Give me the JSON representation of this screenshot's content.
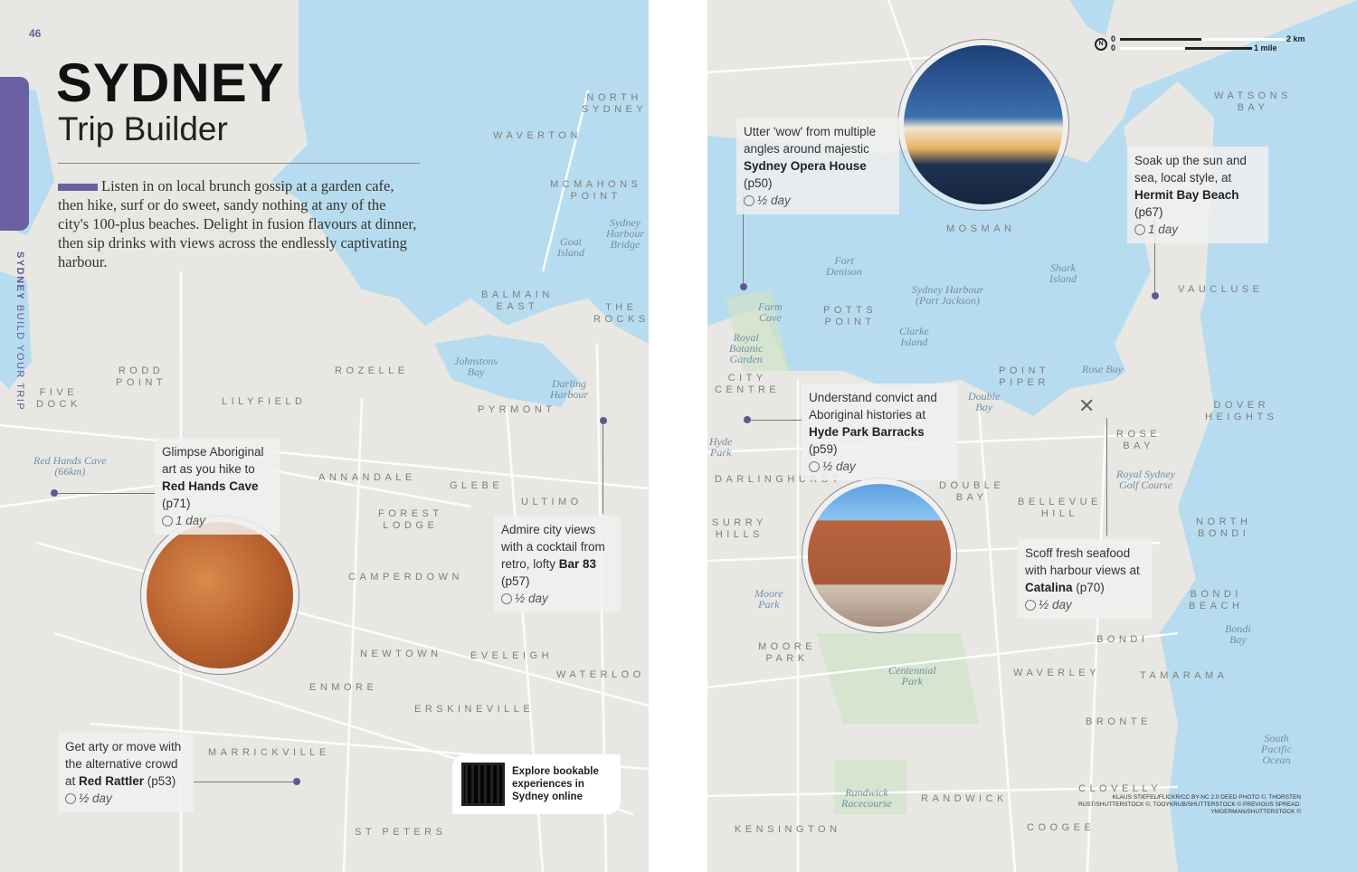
{
  "left_page": {
    "page_number": "46",
    "title": "SYDNEY",
    "subtitle": "Trip Builder",
    "intro": "Listen in on local brunch gossip at a garden cafe, then hike, surf or do sweet, sandy nothing at any of the city's 100-plus beaches. Delight in fusion flavours at dinner, then sip drinks with views across the endlessly captivating harbour.",
    "side_tab": {
      "bold": "SYDNEY",
      "rest": "BUILD YOUR TRIP"
    },
    "suburbs": [
      "NORTH\nSYDNEY",
      "WAVERTON",
      "MCMAHONS\nPOINT",
      "BALMAIN\nEAST",
      "THE\nROCKS",
      "RODD\nPOINT",
      "ROZELLE",
      "FIVE\nDOCK",
      "LILYFIELD",
      "PYRMONT",
      "ANNANDALE",
      "GLEBE",
      "ULTIMO",
      "FOREST\nLODGE",
      "CAMPERDOWN",
      "NEWTOWN",
      "EVELEIGH",
      "WATERLOO",
      "ENMORE",
      "ERSKINEVILLE",
      "MARRICKVILLE",
      "ST PETERS"
    ],
    "water_labels": [
      "Goat\nIsland",
      "Sydney\nHarbour\nBridge",
      "Johnstons\nBay",
      "Darling\nHarbour",
      "Red Hands Cave\n(66km)"
    ],
    "callouts": [
      {
        "pre": "Glimpse Aboriginal art as you hike to ",
        "bold": "Red Hands Cave",
        "post": " (p71)",
        "duration": "1 day"
      },
      {
        "pre": "Admire city views with a cocktail from retro, lofty ",
        "bold": "Bar 83",
        "post": " (p57)",
        "duration": "½ day"
      },
      {
        "pre": "Get arty or move with the alternative crowd at ",
        "bold": "Red Rattler",
        "post": " (p53)",
        "duration": "½ day"
      }
    ],
    "qr_box": {
      "text": "Explore bookable experiences in Sydney online"
    }
  },
  "right_page": {
    "scale": {
      "km_zero": "0",
      "km": "2 km",
      "mile_zero": "0",
      "mile": "1 mile",
      "north": "N"
    },
    "suburbs": [
      "WATSONS\nBAY",
      "MOSMAN",
      "VAUCLUSE",
      "POTTS\nPOINT",
      "CITY\nCENTRE",
      "POINT\nPIPER",
      "DOVER\nHEIGHTS",
      "ROSE\nBAY",
      "DARLINGHURST",
      "DOUBLE\nBAY",
      "BELLEVUE\nHILL",
      "SURRY\nHILLS",
      "NORTH\nBONDI",
      "BONDI\nBEACH",
      "BONDI",
      "MOORE\nPARK",
      "WAVERLEY",
      "TAMARAMA",
      "BRONTE",
      "CLOVELLY",
      "RANDWICK",
      "KENSINGTON",
      "COOGEE"
    ],
    "water_labels": [
      "Fort\nDenison",
      "Sydney Harbour\n(Port Jackson)",
      "Shark\nIsland",
      "Farm\nCove",
      "Clarke\nIsland",
      "Royal\nBotanic\nGarden",
      "Rose Bay",
      "Double\nBay",
      "Hyde\nPark",
      "Royal Sydney\nGolf Course",
      "Moore\nPark",
      "Bondi\nBay",
      "Centennial\nPark",
      "South\nPacific\nOcean",
      "Randwick\nRacecourse"
    ],
    "callouts": [
      {
        "pre": "Utter 'wow' from multiple angles around majestic ",
        "bold": "Sydney Opera House",
        "post": " (p50)",
        "duration": "½ day"
      },
      {
        "pre": "Soak up the sun and sea, local style, at ",
        "bold": "Hermit Bay Beach",
        "post": " (p67)",
        "duration": "1 day"
      },
      {
        "pre": "Understand convict and Aboriginal histories at ",
        "bold": "Hyde Park Barracks",
        "post": " (p59)",
        "duration": "½ day"
      },
      {
        "pre": "Scoff fresh seafood with harbour views at ",
        "bold": "Catalina",
        "post": " (p70)",
        "duration": "½ day"
      }
    ],
    "credits": "KLAUS STIEFEL/FLICKR/CC BY-NC 2.0 DEED PHOTO ©, THORSTEN RUST/SHUTTERSTOCK ©, TOOYKRUB/SHUTTERSTOCK © PREVIOUS SPREAD: YMGERMAN/SHUTTERSTOCK ©"
  },
  "colors": {
    "accent": "#6a5fa0",
    "water": "#b5dbee",
    "land": "#e8e7e3"
  }
}
